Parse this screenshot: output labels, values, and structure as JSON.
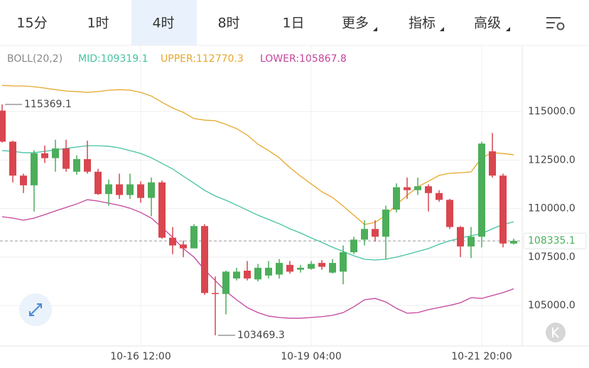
{
  "tabs": [
    "15分",
    "1时",
    "4时",
    "8时",
    "1日",
    "更多",
    "指标",
    "高级"
  ],
  "active_tab": 2,
  "chart_data": {
    "type": "candlestick",
    "indicator": "BOLL(20,2)",
    "up_color": "#4cae5b",
    "down_color": "#d9464f",
    "categories": [
      null,
      null,
      null,
      null,
      null,
      null,
      null,
      null,
      null,
      null,
      null,
      null,
      null,
      "10-16 12:00",
      null,
      null,
      null,
      null,
      null,
      null,
      null,
      null,
      null,
      null,
      null,
      null,
      null,
      null,
      null,
      "10-19 04:00",
      null,
      null,
      null,
      null,
      null,
      null,
      null,
      null,
      null,
      null,
      null,
      null,
      null,
      null,
      null,
      "10-21 20:00",
      null,
      null,
      null
    ],
    "open": [
      115050,
      113450,
      111700,
      111200,
      112850,
      112600,
      113100,
      111900,
      112550,
      111900,
      110750,
      111250,
      110700,
      111250,
      110550,
      111350,
      108500,
      108150,
      107950,
      109100,
      105650,
      105600,
      106400,
      106800,
      106350,
      106550,
      106600,
      107100,
      106850,
      106900,
      107200,
      106700,
      106750,
      107750,
      108400,
      108950,
      108550,
      109950,
      111100,
      110950,
      111150,
      110800,
      110450,
      109050,
      108050,
      108550,
      112950,
      111700,
      108200
    ],
    "high": [
      115369.1,
      113500,
      111800,
      113000,
      113250,
      113550,
      113550,
      112750,
      113500,
      112050,
      111500,
      111800,
      111800,
      111400,
      111600,
      111450,
      109050,
      108350,
      109200,
      109200,
      106500,
      106800,
      106950,
      107300,
      107150,
      107300,
      107400,
      107300,
      107100,
      107300,
      107350,
      107400,
      108100,
      108550,
      109400,
      109400,
      110150,
      111300,
      111600,
      111600,
      111250,
      110950,
      110500,
      109100,
      109050,
      113450,
      113900,
      111800,
      108450
    ],
    "low": [
      113400,
      111350,
      110800,
      109850,
      112350,
      111900,
      111900,
      111750,
      111800,
      110700,
      110150,
      110500,
      110500,
      110300,
      109600,
      108450,
      107650,
      107500,
      107950,
      105550,
      103469.3,
      104550,
      106300,
      106300,
      106250,
      106400,
      106400,
      106650,
      106700,
      106850,
      106850,
      106650,
      106100,
      107650,
      108100,
      108300,
      107400,
      109800,
      110500,
      110700,
      109850,
      110350,
      108950,
      107500,
      107450,
      108000,
      111600,
      108000,
      108150
    ],
    "close": [
      113450,
      111700,
      111200,
      112850,
      112600,
      113100,
      112050,
      112550,
      111900,
      110750,
      111250,
      110700,
      111250,
      110550,
      111350,
      108500,
      108100,
      107950,
      109100,
      105650,
      105600,
      106750,
      106750,
      106400,
      106950,
      106950,
      107200,
      106750,
      106950,
      107150,
      107000,
      107200,
      107750,
      108400,
      108950,
      108550,
      109950,
      111100,
      110950,
      111150,
      110800,
      110450,
      109050,
      108050,
      108550,
      113350,
      111700,
      108200,
      108335.1
    ],
    "series": [
      {
        "name": "MID:109319.1",
        "color": "#45c3a2",
        "values": [
          112990,
          112950,
          112880,
          112880,
          112950,
          113020,
          113100,
          113170,
          113240,
          113240,
          113210,
          113130,
          112990,
          112840,
          112620,
          112330,
          112040,
          111670,
          111310,
          110940,
          110650,
          110430,
          110180,
          109920,
          109660,
          109440,
          109220,
          108960,
          108740,
          108490,
          108260,
          108010,
          107790,
          107570,
          107390,
          107350,
          107390,
          107500,
          107640,
          107790,
          107940,
          108160,
          108340,
          108490,
          108600,
          108710,
          108960,
          109180,
          109319.1
        ]
      },
      {
        "name": "UPPER:112770.3",
        "color": "#e6a82c",
        "values": [
          116350,
          116320,
          116320,
          116280,
          116210,
          116130,
          116060,
          116030,
          115990,
          116030,
          116100,
          116130,
          116100,
          115990,
          115800,
          115480,
          115180,
          114960,
          114640,
          114560,
          114530,
          114340,
          114120,
          113790,
          113320,
          112990,
          112620,
          112110,
          111670,
          111270,
          110870,
          110570,
          110130,
          109660,
          109180,
          109290,
          109660,
          110200,
          110680,
          111120,
          111410,
          111710,
          111820,
          111850,
          111890,
          112620,
          112880,
          112840,
          112770.3
        ]
      },
      {
        "name": "LOWER:105867.8",
        "color": "#c4449c",
        "values": [
          109580,
          109510,
          109400,
          109510,
          109690,
          109880,
          110060,
          110240,
          110460,
          110390,
          110280,
          110170,
          110020,
          109800,
          109510,
          109030,
          108520,
          107940,
          107500,
          106840,
          106290,
          105740,
          105300,
          104900,
          104640,
          104460,
          104390,
          104350,
          104350,
          104390,
          104430,
          104500,
          104640,
          104940,
          105300,
          105370,
          105190,
          104860,
          104610,
          104640,
          104790,
          104900,
          105010,
          105150,
          105410,
          105370,
          105520,
          105670,
          105867.8
        ]
      }
    ],
    "current_price": 108335.1,
    "ylim": [
      102920,
      118370
    ],
    "yticks": [
      {
        "value": 115000,
        "label": "115000.0"
      },
      {
        "value": 112500,
        "label": "112500.0"
      },
      {
        "value": 110000,
        "label": "110000.0"
      },
      {
        "value": 107500,
        "label": "107500.0"
      },
      {
        "value": 105000,
        "label": "105000.0"
      }
    ],
    "grid": true
  }
}
